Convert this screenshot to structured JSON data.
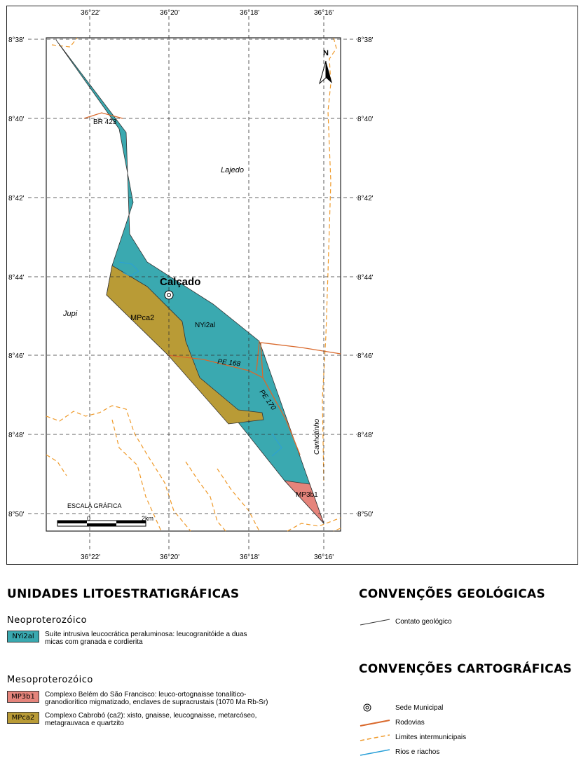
{
  "map": {
    "top_lon_labels": [
      "36°22'",
      "36°20'",
      "36°18'",
      "36°16'"
    ],
    "bottom_lon_labels": [
      "36°22'",
      "36°20'",
      "36°18'",
      "36°16'"
    ],
    "left_lat_labels": [
      "8°38'",
      "8°40'",
      "8°42'",
      "8°44'",
      "8°46'",
      "8°48'",
      "8°50'"
    ],
    "right_lat_labels": [
      "8°38'",
      "8°40'",
      "8°42'",
      "8°44'",
      "8°46'",
      "8°48'",
      "8°50'"
    ],
    "north_label": "N",
    "place_calcado": "Calçado",
    "place_lajedo": "Lajedo",
    "place_jupi": "Jupi",
    "place_canhotinho": "Canhotinho",
    "road_br423": "BR 423",
    "road_pe168": "PE 168",
    "road_pe170": "PE 170",
    "unit_label_nyi": "NYi2al",
    "unit_label_mpca2": "MPca2",
    "unit_label_mp3b1": "MP3b1",
    "scale_title": "ESCALA GRÁFICA",
    "scale_zero": "0",
    "scale_end": "2km",
    "colors": {
      "neoproterozoic": "#3aa9b0",
      "cabrobo": "#b99b36",
      "belem": "#e5847b",
      "road": "#d9692c",
      "municipal_limit": "#ef9a2a",
      "river": "#2aa0d8",
      "contact": "#333333"
    }
  },
  "legend": {
    "units_title": "UNIDADES LITOESTRATIGRÁFICAS",
    "neo_era": "Neoproterozóico",
    "nyi_code": "NYi2al",
    "nyi_desc": "Suíte intrusiva leucocrática peraluminosa: leucogranitóide a duas micas com granada e cordierita",
    "meso_era": "Mesoproterozóico",
    "mp3b1_code": "MP3b1",
    "mp3b1_desc": "Complexo Belém do São Francisco: leuco-ortognaisse tonalítico-granodiorítico migmatizado, enclaves de supracrustais (1070 Ma Rb-Sr)",
    "mpca2_code": "MPca2",
    "mpca2_desc": "Complexo Cabrobó (ca2): xisto, gnaisse, leucognaisse, metarcóseo, metagrauvaca e quartzito",
    "geo_title": "CONVENÇÕES GEOLÓGICAS",
    "contact_label": "Contato geológico",
    "carto_title": "CONVENÇÕES CARTOGRÁFICAS",
    "sede_label": "Sede Municipal",
    "rodovias_label": "Rodovias",
    "limites_label": "Limites intermunicipais",
    "rios_label": "Rios e riachos"
  }
}
